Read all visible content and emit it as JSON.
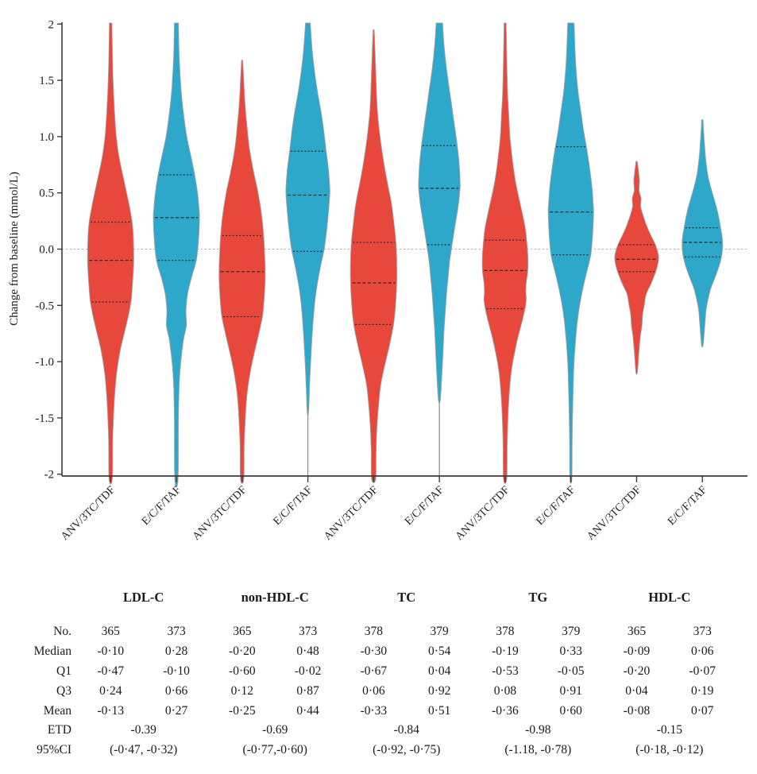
{
  "figure_background": "#ffffff",
  "chart_data": {
    "type": "violin",
    "ylabel": "Change from baseline (mmol/L)",
    "ylim": [
      -2,
      2
    ],
    "grid": "zero-line-only",
    "zero_line_value": 0,
    "yticks": [
      {
        "label": "2",
        "value": 2
      },
      {
        "label": "1.5",
        "value": 1.5
      },
      {
        "label": "1.0",
        "value": 1.0
      },
      {
        "label": "0.5",
        "value": 0.5
      },
      {
        "label": "0.0",
        "value": 0.0
      },
      {
        "label": "-0.5",
        "value": -0.5
      },
      {
        "label": "-1.0",
        "value": -1.0
      },
      {
        "label": "-1.5",
        "value": -1.5
      },
      {
        "label": "-2",
        "value": -2
      }
    ],
    "groups": [
      "ANV/3TC/TDF",
      "E/C/F/TAF"
    ],
    "colors": {
      "ANV/3TC/TDF": "#e8473b",
      "E/C/F/TAF": "#2ea8ca"
    },
    "outline_color": "#9b9b9b",
    "panels": [
      "LDL-C",
      "non-HDL-C",
      "TC",
      "TG",
      "HDL-C"
    ],
    "violins": [
      {
        "panel": "LDL-C",
        "group": "ANV/3TC/TDF",
        "n": 365,
        "median": -0.1,
        "q1": -0.47,
        "q3": 0.24,
        "mean": -0.13,
        "clip_top": true,
        "clip_bottom": true,
        "stem_to_axis": false,
        "profile_v_hw": [
          [
            2,
            1.5
          ],
          [
            1.8,
            2
          ],
          [
            1.5,
            3
          ],
          [
            1.2,
            5
          ],
          [
            1,
            7
          ],
          [
            0.8,
            11
          ],
          [
            0.6,
            17
          ],
          [
            0.4,
            23
          ],
          [
            0.24,
            27
          ],
          [
            0.1,
            28.5
          ],
          [
            -0.1,
            29
          ],
          [
            -0.25,
            28
          ],
          [
            -0.4,
            26.5
          ],
          [
            -0.47,
            25.5
          ],
          [
            -0.6,
            22
          ],
          [
            -0.75,
            17
          ],
          [
            -0.9,
            12
          ],
          [
            -1.1,
            7.5
          ],
          [
            -1.3,
            5
          ],
          [
            -1.5,
            3.5
          ],
          [
            -1.7,
            2.5
          ],
          [
            -2,
            2
          ]
        ]
      },
      {
        "panel": "LDL-C",
        "group": "E/C/F/TAF",
        "n": 373,
        "median": 0.28,
        "q1": -0.1,
        "q3": 0.66,
        "mean": 0.27,
        "clip_top": true,
        "clip_bottom": true,
        "stem_to_axis": false,
        "profile_v_hw": [
          [
            2,
            2.5
          ],
          [
            1.7,
            3.5
          ],
          [
            1.4,
            6
          ],
          [
            1.2,
            9
          ],
          [
            1,
            13
          ],
          [
            0.8,
            19
          ],
          [
            0.66,
            23
          ],
          [
            0.5,
            26.5
          ],
          [
            0.35,
            28.5
          ],
          [
            0.28,
            29
          ],
          [
            0.1,
            28
          ],
          [
            -0.1,
            25
          ],
          [
            -0.25,
            19
          ],
          [
            -0.4,
            14
          ],
          [
            -0.55,
            12
          ],
          [
            -0.68,
            12.5
          ],
          [
            -0.8,
            9
          ],
          [
            -1,
            5.5
          ],
          [
            -1.2,
            3.5
          ],
          [
            -1.5,
            2.5
          ],
          [
            -2,
            2
          ]
        ]
      },
      {
        "panel": "non-HDL-C",
        "group": "ANV/3TC/TDF",
        "n": 365,
        "median": -0.2,
        "q1": -0.6,
        "q3": 0.12,
        "mean": -0.25,
        "clip_top": false,
        "clip_bottom": true,
        "stem_to_axis": false,
        "profile_v_hw": [
          [
            1.68,
            0.6
          ],
          [
            1.5,
            2
          ],
          [
            1.3,
            3.5
          ],
          [
            1.1,
            6
          ],
          [
            0.9,
            9
          ],
          [
            0.7,
            14
          ],
          [
            0.5,
            20
          ],
          [
            0.3,
            24.5
          ],
          [
            0.12,
            27
          ],
          [
            0,
            28
          ],
          [
            -0.2,
            29
          ],
          [
            -0.35,
            28.5
          ],
          [
            -0.5,
            27
          ],
          [
            -0.6,
            25.5
          ],
          [
            -0.75,
            21
          ],
          [
            -0.9,
            16
          ],
          [
            -1.1,
            10
          ],
          [
            -1.3,
            6
          ],
          [
            -1.5,
            4
          ],
          [
            -1.75,
            2.5
          ],
          [
            -2,
            2
          ]
        ]
      },
      {
        "panel": "non-HDL-C",
        "group": "E/C/F/TAF",
        "n": 373,
        "median": 0.48,
        "q1": -0.02,
        "q3": 0.87,
        "mean": 0.44,
        "clip_top": true,
        "clip_bottom": false,
        "stem_to_axis": true,
        "profile_v_hw": [
          [
            2,
            3
          ],
          [
            1.8,
            5
          ],
          [
            1.6,
            8
          ],
          [
            1.4,
            12
          ],
          [
            1.2,
            17
          ],
          [
            1.05,
            20
          ],
          [
            0.87,
            23
          ],
          [
            0.7,
            26
          ],
          [
            0.55,
            27.5
          ],
          [
            0.48,
            27.5
          ],
          [
            0.3,
            25.5
          ],
          [
            0.1,
            22.5
          ],
          [
            -0.02,
            20
          ],
          [
            -0.15,
            16
          ],
          [
            -0.3,
            12
          ],
          [
            -0.45,
            9
          ],
          [
            -0.6,
            7
          ],
          [
            -0.8,
            5
          ],
          [
            -1,
            3.5
          ],
          [
            -1.2,
            2.2
          ],
          [
            -1.45,
            0.8
          ]
        ]
      },
      {
        "panel": "TC",
        "group": "ANV/3TC/TDF",
        "n": 378,
        "median": -0.3,
        "q1": -0.67,
        "q3": 0.06,
        "mean": -0.33,
        "clip_top": false,
        "clip_bottom": true,
        "stem_to_axis": false,
        "profile_v_hw": [
          [
            1.95,
            0.6
          ],
          [
            1.8,
            1.5
          ],
          [
            1.6,
            2.5
          ],
          [
            1.4,
            3.5
          ],
          [
            1.2,
            5
          ],
          [
            1,
            8
          ],
          [
            0.8,
            12
          ],
          [
            0.6,
            17
          ],
          [
            0.4,
            22.5
          ],
          [
            0.2,
            26
          ],
          [
            0.06,
            28
          ],
          [
            -0.1,
            29
          ],
          [
            -0.3,
            29
          ],
          [
            -0.5,
            27.5
          ],
          [
            -0.67,
            25
          ],
          [
            -0.85,
            20
          ],
          [
            -1,
            15
          ],
          [
            -1.2,
            9
          ],
          [
            -1.4,
            6
          ],
          [
            -1.6,
            4
          ],
          [
            -1.8,
            3
          ],
          [
            -2,
            2.5
          ]
        ]
      },
      {
        "panel": "TC",
        "group": "E/C/F/TAF",
        "n": 379,
        "median": 0.54,
        "q1": 0.04,
        "q3": 0.92,
        "mean": 0.51,
        "clip_top": true,
        "clip_bottom": false,
        "stem_to_axis": true,
        "profile_v_hw": [
          [
            2,
            4
          ],
          [
            1.8,
            6
          ],
          [
            1.6,
            9
          ],
          [
            1.4,
            13
          ],
          [
            1.2,
            17
          ],
          [
            1.05,
            20
          ],
          [
            0.92,
            22.5
          ],
          [
            0.75,
            25
          ],
          [
            0.6,
            26
          ],
          [
            0.54,
            26
          ],
          [
            0.4,
            24
          ],
          [
            0.2,
            19.5
          ],
          [
            0.04,
            16
          ],
          [
            -0.1,
            13
          ],
          [
            -0.25,
            11
          ],
          [
            -0.4,
            9
          ],
          [
            -0.55,
            7.5
          ],
          [
            -0.7,
            6
          ],
          [
            -0.85,
            5
          ],
          [
            -1,
            4
          ],
          [
            -1.2,
            2.5
          ],
          [
            -1.35,
            1
          ]
        ]
      },
      {
        "panel": "TG",
        "group": "ANV/3TC/TDF",
        "n": 378,
        "median": -0.19,
        "q1": -0.53,
        "q3": 0.08,
        "mean": -0.36,
        "clip_top": true,
        "clip_bottom": true,
        "stem_to_axis": false,
        "profile_v_hw": [
          [
            2,
            1.2
          ],
          [
            1.7,
            2
          ],
          [
            1.4,
            3
          ],
          [
            1.2,
            4.5
          ],
          [
            1,
            6
          ],
          [
            0.8,
            9
          ],
          [
            0.6,
            13
          ],
          [
            0.4,
            19
          ],
          [
            0.2,
            25
          ],
          [
            0.08,
            27
          ],
          [
            -0.05,
            28.5
          ],
          [
            -0.19,
            28.5
          ],
          [
            -0.3,
            26.5
          ],
          [
            -0.38,
            26
          ],
          [
            -0.45,
            26.5
          ],
          [
            -0.53,
            25
          ],
          [
            -0.65,
            21
          ],
          [
            -0.8,
            15.5
          ],
          [
            -0.95,
            11
          ],
          [
            -1.1,
            7.5
          ],
          [
            -1.3,
            5
          ],
          [
            -1.5,
            3.5
          ],
          [
            -1.75,
            2.5
          ],
          [
            -2,
            2
          ]
        ]
      },
      {
        "panel": "TG",
        "group": "E/C/F/TAF",
        "n": 379,
        "median": 0.33,
        "q1": -0.05,
        "q3": 0.91,
        "mean": 0.6,
        "clip_top": true,
        "clip_bottom": true,
        "stem_to_axis": false,
        "profile_v_hw": [
          [
            2,
            4
          ],
          [
            1.8,
            5
          ],
          [
            1.6,
            6.5
          ],
          [
            1.4,
            9
          ],
          [
            1.2,
            13
          ],
          [
            1.05,
            16
          ],
          [
            0.91,
            19.5
          ],
          [
            0.75,
            23
          ],
          [
            0.55,
            26.5
          ],
          [
            0.4,
            28
          ],
          [
            0.33,
            28.5
          ],
          [
            0.15,
            27.5
          ],
          [
            -0.05,
            25
          ],
          [
            -0.2,
            20
          ],
          [
            -0.35,
            15
          ],
          [
            -0.5,
            11
          ],
          [
            -0.65,
            8
          ],
          [
            -0.8,
            6
          ],
          [
            -1,
            4
          ],
          [
            -1.2,
            3
          ],
          [
            -1.5,
            2
          ],
          [
            -1.75,
            1.5
          ],
          [
            -2,
            1.2
          ]
        ]
      },
      {
        "panel": "HDL-C",
        "group": "ANV/3TC/TDF",
        "n": 365,
        "median": -0.09,
        "q1": -0.2,
        "q3": 0.04,
        "mean": -0.08,
        "clip_top": false,
        "clip_bottom": false,
        "stem_to_axis": false,
        "profile_v_hw": [
          [
            0.78,
            0.8
          ],
          [
            0.68,
            2.5
          ],
          [
            0.6,
            3.5
          ],
          [
            0.52,
            3
          ],
          [
            0.45,
            5.5
          ],
          [
            0.38,
            5
          ],
          [
            0.3,
            8
          ],
          [
            0.2,
            13
          ],
          [
            0.12,
            18
          ],
          [
            0.04,
            23.5
          ],
          [
            -0.04,
            27
          ],
          [
            -0.09,
            27.5
          ],
          [
            -0.15,
            26
          ],
          [
            -0.2,
            24
          ],
          [
            -0.3,
            18.5
          ],
          [
            -0.4,
            12
          ],
          [
            -0.5,
            9.5
          ],
          [
            -0.58,
            7.5
          ],
          [
            -0.68,
            6.5
          ],
          [
            -0.78,
            4.5
          ],
          [
            -0.9,
            3
          ],
          [
            -1,
            2
          ],
          [
            -1.1,
            0.8
          ]
        ]
      },
      {
        "panel": "HDL-C",
        "group": "E/C/F/TAF",
        "n": 373,
        "median": 0.06,
        "q1": -0.07,
        "q3": 0.19,
        "mean": 0.07,
        "clip_top": false,
        "clip_bottom": false,
        "stem_to_axis": false,
        "profile_v_hw": [
          [
            1.15,
            0.8
          ],
          [
            1.05,
            1.5
          ],
          [
            0.95,
            2.5
          ],
          [
            0.85,
            3.5
          ],
          [
            0.75,
            5
          ],
          [
            0.65,
            7
          ],
          [
            0.55,
            10.5
          ],
          [
            0.45,
            14.5
          ],
          [
            0.35,
            18.5
          ],
          [
            0.25,
            21.5
          ],
          [
            0.19,
            23
          ],
          [
            0.1,
            25
          ],
          [
            0.05,
            25.5
          ],
          [
            -0.02,
            25
          ],
          [
            -0.07,
            24
          ],
          [
            -0.15,
            21
          ],
          [
            -0.25,
            16
          ],
          [
            -0.35,
            10.5
          ],
          [
            -0.45,
            7
          ],
          [
            -0.55,
            4.5
          ],
          [
            -0.68,
            3
          ],
          [
            -0.85,
            1
          ]
        ]
      }
    ]
  },
  "table": {
    "row_labels": [
      "No.",
      "Median",
      "Q1",
      "Q3",
      "Mean",
      "ETD",
      "95%CI"
    ],
    "panels": [
      {
        "label": "LDL-C",
        "no": [
          "365",
          "373"
        ],
        "median": [
          "-0·10",
          "0·28"
        ],
        "q1": [
          "-0·47",
          "-0·10"
        ],
        "q3": [
          "0·24",
          "0·66"
        ],
        "mean": [
          "-0·13",
          "0·27"
        ],
        "etd": "-0.39",
        "ci": "(-0·47, -0·32)"
      },
      {
        "label": "non-HDL-C",
        "no": [
          "365",
          "373"
        ],
        "median": [
          "-0·20",
          "0·48"
        ],
        "q1": [
          "-0·60",
          "-0·02"
        ],
        "q3": [
          "0·12",
          "0·87"
        ],
        "mean": [
          "-0·25",
          "0·44"
        ],
        "etd": "-0.69",
        "ci": "(-0·77,-0·60)"
      },
      {
        "label": "TC",
        "no": [
          "378",
          "379"
        ],
        "median": [
          "-0·30",
          "0·54"
        ],
        "q1": [
          "-0·67",
          "0·04"
        ],
        "q3": [
          "0·06",
          "0·92"
        ],
        "mean": [
          "-0·33",
          "0·51"
        ],
        "etd": "-0.84",
        "ci": "(-0·92, -0·75)"
      },
      {
        "label": "TG",
        "no": [
          "378",
          "379"
        ],
        "median": [
          "-0·19",
          "0·33"
        ],
        "q1": [
          "-0·53",
          "-0·05"
        ],
        "q3": [
          "0·08",
          "0·91"
        ],
        "mean": [
          "-0·36",
          "0·60"
        ],
        "etd": "-0.98",
        "ci": "(-1.18, -0·78)"
      },
      {
        "label": "HDL-C",
        "no": [
          "365",
          "373"
        ],
        "median": [
          "-0·09",
          "0·06"
        ],
        "q1": [
          "-0·20",
          "-0·07"
        ],
        "q3": [
          "0·04",
          "0·19"
        ],
        "mean": [
          "-0·08",
          "0·07"
        ],
        "etd": "-0.15",
        "ci": "(-0·18, -0·12)"
      }
    ]
  }
}
